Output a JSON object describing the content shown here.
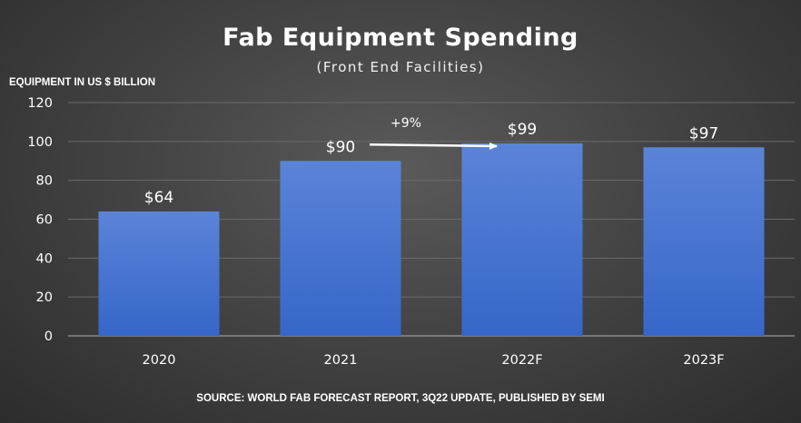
{
  "chart_data": {
    "type": "bar",
    "title": "Fab Equipment Spending",
    "subtitle": "(Front End Facilities)",
    "ylabel": "EQUIPMENT IN US $ BILLION",
    "xlabel": "",
    "categories": [
      "2020",
      "2021",
      "2022F",
      "2023F"
    ],
    "values": [
      64,
      90,
      99,
      97
    ],
    "data_labels": [
      "$64",
      "$90",
      "$99",
      "$97"
    ],
    "ylim": [
      0,
      120
    ],
    "yticks": [
      0,
      20,
      40,
      60,
      80,
      100,
      120
    ],
    "grid": true,
    "legend": "none",
    "bar_color": "#4a78d6",
    "annotation": {
      "text": "+9%",
      "from_category": "2021",
      "to_category": "2022F"
    },
    "source": "SOURCE: WORLD FAB FORECAST REPORT, 3Q22 UPDATE, PUBLISHED BY SEMI"
  }
}
